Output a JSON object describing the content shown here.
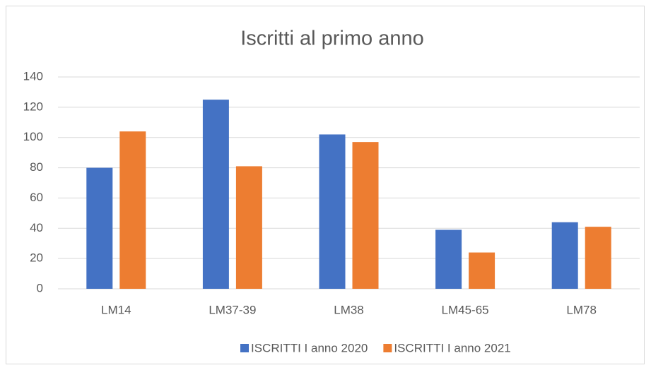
{
  "chart_data": {
    "type": "bar",
    "title": "Iscritti al primo anno",
    "categories": [
      "LM14",
      "LM37-39",
      "LM38",
      "LM45-65",
      "LM78"
    ],
    "series": [
      {
        "name": "ISCRITTI I anno 2020",
        "color": "#4472c4",
        "values": [
          80,
          125,
          102,
          39,
          44
        ]
      },
      {
        "name": "ISCRITTI I anno 2021",
        "color": "#ed7d31",
        "values": [
          104,
          81,
          97,
          24,
          41
        ]
      }
    ],
    "ylim": [
      0,
      140
    ],
    "yticks": [
      0,
      20,
      40,
      60,
      80,
      100,
      120,
      140
    ],
    "grid": true,
    "legend": "bottom"
  }
}
